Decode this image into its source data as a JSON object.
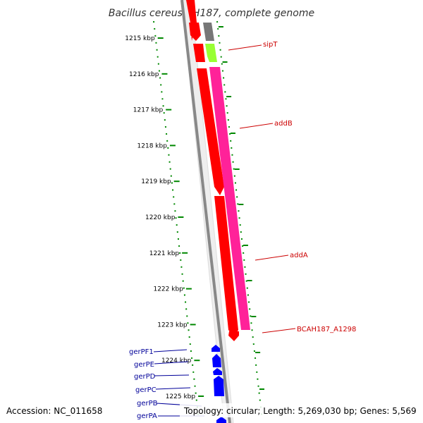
{
  "title": "Bacillus cereus AH187, complete genome",
  "footer": {
    "accession": "Accession: NC_011658",
    "topology": "Topology: circular; Length: 5,269,030 bp; Genes: 5,569"
  },
  "ruler": {
    "ticks": [
      "1215 kbp",
      "1216 kbp",
      "1217 kbp",
      "1218 kbp",
      "1219 kbp",
      "1220 kbp",
      "1221 kbp",
      "1222 kbp",
      "1223 kbp",
      "1224 kbp",
      "1225 kbp"
    ]
  },
  "colors": {
    "backbone": "#888888",
    "forward_red": "#ff0000",
    "reverse_pink": "#ff2299",
    "grey_gene": "#777777",
    "lime_gene": "#99ff33",
    "blue_gene": "#0000ff",
    "green_dots": "#008800",
    "label_red": "#cc0000",
    "label_blue": "#000099"
  },
  "genes": {
    "right": [
      "sipT",
      "addB",
      "addA",
      "BCAH187_A1298"
    ],
    "left": [
      "gerPF1",
      "gerPE",
      "gerPD",
      "gerPC",
      "gerPB",
      "gerPA"
    ]
  }
}
